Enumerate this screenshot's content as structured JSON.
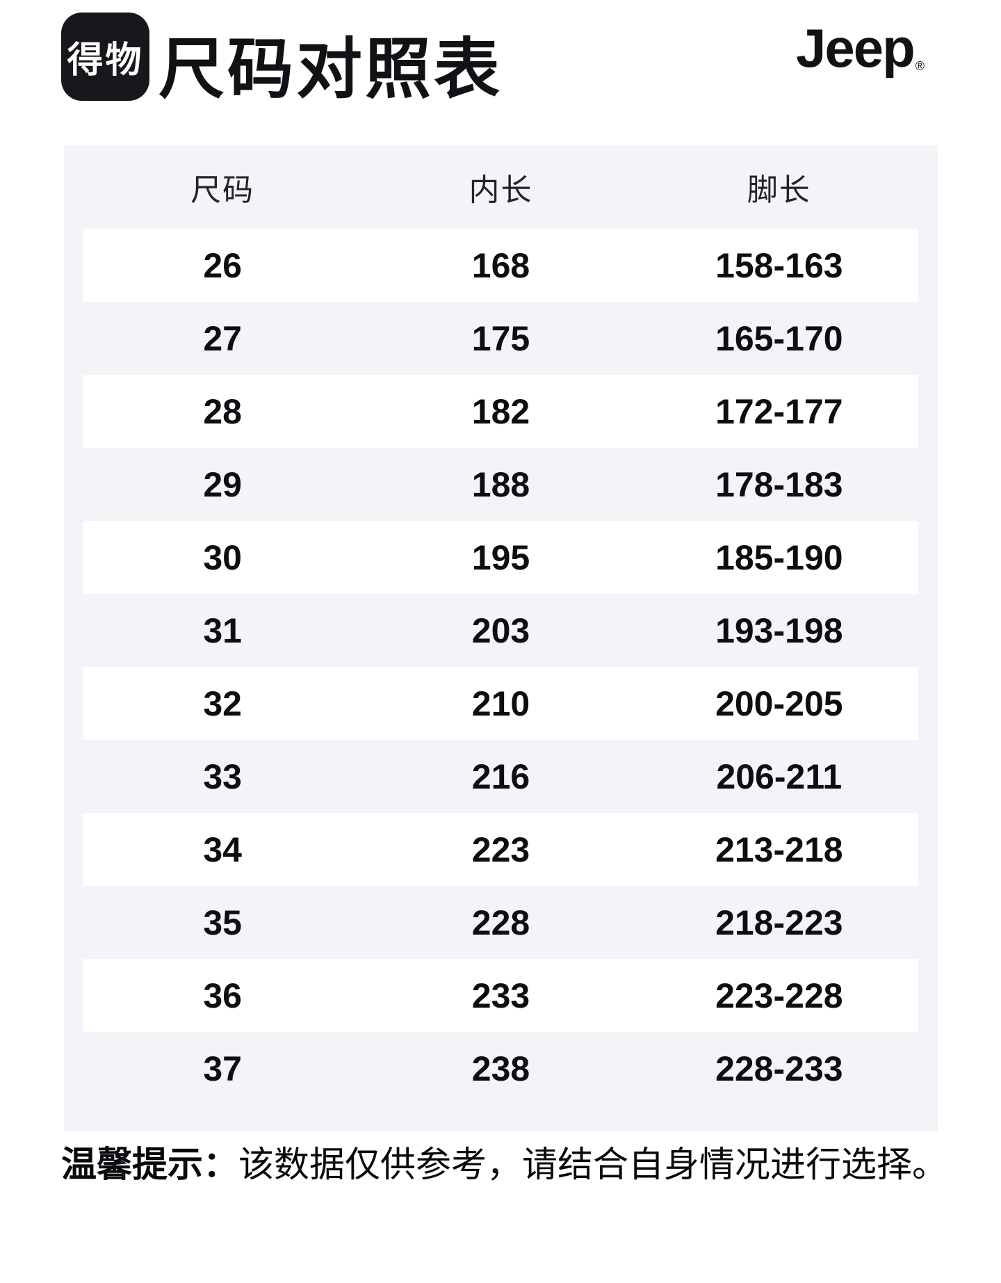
{
  "header": {
    "logo_text": "得物",
    "title": "尺码对照表",
    "brand": "Jeep",
    "brand_reg": "®"
  },
  "table": {
    "columns": [
      "尺码",
      "内长",
      "脚长"
    ],
    "rows": [
      [
        "26",
        "168",
        "158-163"
      ],
      [
        "27",
        "175",
        "165-170"
      ],
      [
        "28",
        "182",
        "172-177"
      ],
      [
        "29",
        "188",
        "178-183"
      ],
      [
        "30",
        "195",
        "185-190"
      ],
      [
        "31",
        "203",
        "193-198"
      ],
      [
        "32",
        "210",
        "200-205"
      ],
      [
        "33",
        "216",
        "206-211"
      ],
      [
        "34",
        "223",
        "213-218"
      ],
      [
        "35",
        "228",
        "218-223"
      ],
      [
        "36",
        "233",
        "223-228"
      ],
      [
        "37",
        "238",
        "228-233"
      ]
    ]
  },
  "footer": {
    "label": "温馨提示：",
    "text": "该数据仅供参考，请结合自身情况进行选择。"
  },
  "colors": {
    "page_bg": "#ffffff",
    "table_bg": "#f4f4f8",
    "row_alt_bg": "#ffffff",
    "text": "#0e0e12",
    "logo_bg": "#17171c"
  }
}
